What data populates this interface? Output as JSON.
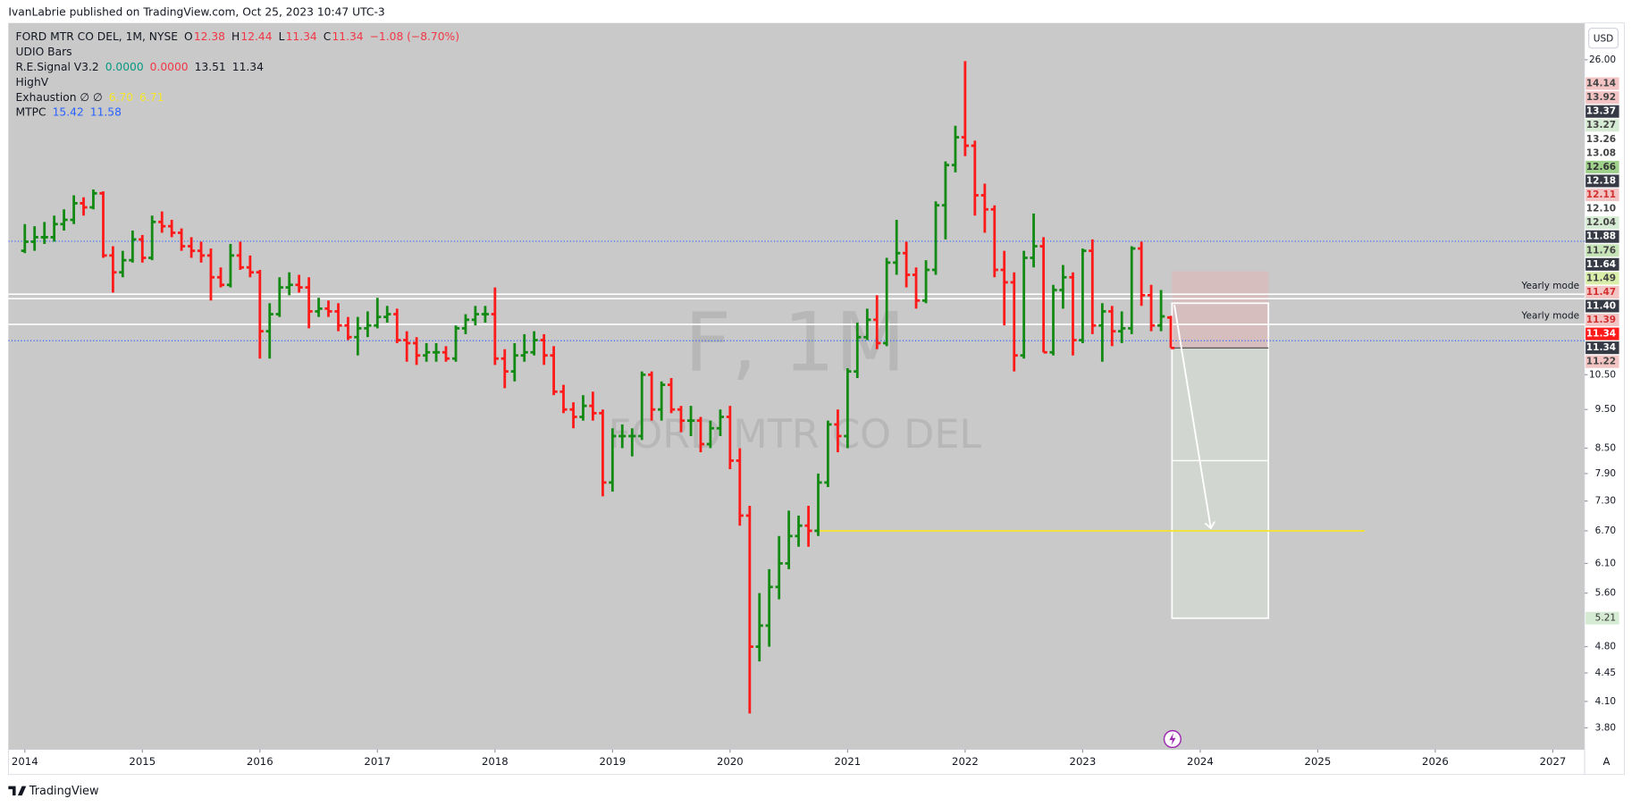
{
  "header": {
    "published": "IvanLabrie published on TradingView.com, Oct 25, 2023 10:47 UTC-3"
  },
  "currency": "USD",
  "legend": [
    [
      {
        "text": "FORD MTR CO DEL, 1M, NYSE",
        "color": "#131722"
      },
      {
        "text": "O",
        "color": "#131722"
      },
      {
        "text": "12.38",
        "color": "#f23645"
      },
      {
        "text": "H",
        "color": "#131722"
      },
      {
        "text": "12.44",
        "color": "#f23645"
      },
      {
        "text": "L",
        "color": "#131722"
      },
      {
        "text": "11.34",
        "color": "#f23645"
      },
      {
        "text": "C",
        "color": "#131722"
      },
      {
        "text": "11.34",
        "color": "#f23645"
      },
      {
        "text": "−1.08 (−8.70%)",
        "color": "#f23645"
      }
    ],
    [
      {
        "text": "UDIO Bars",
        "color": "#131722"
      }
    ],
    [
      {
        "text": "R.E.Signal V3.2",
        "color": "#131722"
      },
      {
        "text": "0.0000",
        "color": "#089981"
      },
      {
        "text": "0.0000",
        "color": "#f23645"
      },
      {
        "text": "13.51",
        "color": "#131722"
      },
      {
        "text": "11.34",
        "color": "#131722"
      }
    ],
    [
      {
        "text": "HighV",
        "color": "#131722"
      }
    ],
    [
      {
        "text": "Exhaustion  ∅  ∅",
        "color": "#131722"
      },
      {
        "text": "6.70",
        "color": "#f5e52a"
      },
      {
        "text": "6.71",
        "color": "#f5e52a"
      }
    ],
    [
      {
        "text": "MTPC",
        "color": "#131722"
      },
      {
        "text": "15.42",
        "color": "#2962ff"
      },
      {
        "text": "11.58",
        "color": "#2962ff"
      }
    ]
  ],
  "watermark": {
    "symbol": "F, 1M",
    "name": "FORD MTR CO DEL"
  },
  "chart_data": {
    "type": "ohlc",
    "log_scale": true,
    "up_color": "#138a13",
    "down_color": "#ff1a1a",
    "xlim": [
      2013.86,
      2027.27
    ],
    "xticks": [
      2014,
      2015,
      2016,
      2017,
      2018,
      2019,
      2020,
      2021,
      2022,
      2023,
      2024,
      2025,
      2026,
      2027
    ],
    "ylim": [
      3.57,
      28.9
    ],
    "yticks": [
      {
        "value": 26,
        "label": "26.00"
      },
      {
        "value": 10.5,
        "label": "10.50"
      },
      {
        "value": 9.5,
        "label": "9.50"
      },
      {
        "value": 8.5,
        "label": "8.50"
      },
      {
        "value": 7.9,
        "label": "7.90"
      },
      {
        "value": 7.3,
        "label": "7.30"
      },
      {
        "value": 6.7,
        "label": "6.70"
      },
      {
        "value": 6.1,
        "label": "6.10"
      },
      {
        "value": 5.6,
        "label": "5.60"
      },
      {
        "value": 4.8,
        "label": "4.80"
      },
      {
        "value": 4.45,
        "label": "4.45"
      },
      {
        "value": 4.1,
        "label": "4.10"
      },
      {
        "value": 3.8,
        "label": "3.80"
      }
    ],
    "x": [
      2014,
      2014.083,
      2014.167,
      2014.25,
      2014.333,
      2014.417,
      2014.5,
      2014.583,
      2014.667,
      2014.75,
      2014.833,
      2014.917,
      2015,
      2015.083,
      2015.167,
      2015.25,
      2015.333,
      2015.417,
      2015.5,
      2015.583,
      2015.667,
      2015.75,
      2015.833,
      2015.917,
      2016,
      2016.083,
      2016.167,
      2016.25,
      2016.333,
      2016.417,
      2016.5,
      2016.583,
      2016.667,
      2016.75,
      2016.833,
      2016.917,
      2017,
      2017.083,
      2017.167,
      2017.25,
      2017.333,
      2017.417,
      2017.5,
      2017.583,
      2017.667,
      2017.75,
      2017.833,
      2017.917,
      2018,
      2018.083,
      2018.167,
      2018.25,
      2018.333,
      2018.417,
      2018.5,
      2018.583,
      2018.667,
      2018.75,
      2018.833,
      2018.917,
      2019,
      2019.083,
      2019.167,
      2019.25,
      2019.333,
      2019.417,
      2019.5,
      2019.583,
      2019.667,
      2019.75,
      2019.833,
      2019.917,
      2020,
      2020.083,
      2020.167,
      2020.25,
      2020.333,
      2020.417,
      2020.5,
      2020.583,
      2020.667,
      2020.75,
      2020.833,
      2020.917,
      2021,
      2021.083,
      2021.167,
      2021.25,
      2021.333,
      2021.417,
      2021.5,
      2021.583,
      2021.667,
      2021.75,
      2021.833,
      2021.917,
      2022,
      2022.083,
      2022.167,
      2022.25,
      2022.333,
      2022.417,
      2022.5,
      2022.583,
      2022.667,
      2022.75,
      2022.833,
      2022.917,
      2023,
      2023.083,
      2023.167,
      2023.25,
      2023.333,
      2023.417,
      2023.5,
      2023.583,
      2023.667,
      2023.75
    ],
    "open": [
      15.0,
      15.4,
      15.6,
      15.6,
      16.2,
      16.4,
      17.2,
      17.0,
      17.7,
      14.8,
      14.1,
      14.6,
      15.5,
      14.7,
      16.3,
      16.1,
      15.8,
      15.2,
      15.0,
      14.8,
      13.9,
      13.6,
      14.8,
      14.3,
      14.1,
      11.9,
      12.5,
      13.5,
      13.6,
      13.5,
      12.6,
      12.7,
      12.6,
      12.1,
      11.7,
      12.0,
      12.1,
      12.4,
      12.5,
      11.6,
      11.5,
      11.1,
      11.2,
      11.2,
      11.0,
      12.0,
      12.3,
      12.5,
      12.5,
      11.0,
      10.6,
      11.1,
      11.2,
      11.6,
      11.1,
      10.0,
      9.5,
      9.3,
      9.6,
      9.4,
      7.7,
      8.8,
      8.8,
      8.8,
      10.5,
      9.5,
      10.2,
      9.5,
      9.2,
      9.2,
      8.6,
      9.0,
      9.3,
      8.2,
      7.0,
      4.8,
      5.1,
      5.7,
      6.1,
      6.6,
      6.8,
      6.7,
      7.7,
      9.1,
      8.8,
      10.6,
      11.7,
      12.3,
      11.5,
      14.5,
      14.9,
      14.0,
      13.0,
      14.2,
      17.1,
      19.2,
      20.8,
      20.3,
      17.6,
      16.9,
      14.2,
      13.7,
      11.1,
      14.7,
      15.2,
      11.2,
      13.4,
      13.9,
      11.6,
      15.0,
      12.1,
      12.6,
      11.9,
      12.0,
      15.1,
      13.2,
      12.1,
      12.38
    ],
    "high": [
      16.2,
      16.1,
      16.3,
      16.6,
      16.9,
      17.6,
      17.5,
      17.9,
      17.8,
      15.2,
      15.0,
      15.9,
      15.7,
      16.6,
      16.8,
      16.4,
      16.0,
      15.6,
      15.4,
      15.1,
      14.3,
      15.3,
      15.4,
      14.8,
      14.2,
      12.9,
      13.9,
      14.1,
      14.0,
      13.9,
      13.1,
      13.0,
      12.9,
      12.4,
      12.4,
      12.6,
      13.1,
      12.8,
      12.7,
      11.9,
      11.7,
      11.5,
      11.5,
      11.4,
      12.1,
      12.5,
      12.8,
      12.8,
      13.5,
      11.3,
      11.5,
      11.8,
      11.9,
      11.8,
      11.4,
      10.2,
      9.7,
      9.9,
      10.0,
      9.5,
      9.0,
      9.1,
      9.0,
      10.6,
      10.6,
      10.3,
      10.4,
      9.6,
      9.6,
      9.3,
      9.2,
      9.5,
      9.6,
      8.5,
      7.2,
      5.6,
      6.0,
      6.6,
      7.1,
      7.0,
      7.2,
      7.9,
      9.2,
      9.5,
      10.7,
      12.2,
      12.7,
      13.2,
      14.7,
      16.4,
      15.4,
      14.3,
      14.6,
      17.3,
      19.4,
      21.5,
      25.9,
      20.6,
      18.2,
      17.1,
      15.0,
      14.1,
      15.0,
      16.7,
      15.6,
      13.6,
      14.4,
      14.1,
      15.1,
      15.5,
      12.9,
      12.8,
      12.6,
      15.2,
      15.4,
      13.6,
      13.4,
      12.44
    ],
    "low": [
      14.9,
      15.0,
      15.3,
      15.4,
      15.9,
      16.2,
      16.6,
      16.9,
      14.7,
      13.3,
      13.9,
      14.5,
      14.5,
      14.6,
      15.8,
      15.6,
      15.0,
      14.7,
      14.5,
      13.0,
      13.5,
      13.5,
      14.2,
      13.9,
      11.0,
      11.0,
      12.4,
      13.2,
      13.3,
      12.0,
      12.4,
      12.4,
      11.9,
      11.6,
      11.1,
      11.7,
      12.0,
      12.2,
      11.5,
      10.9,
      10.8,
      10.9,
      10.9,
      10.9,
      10.9,
      11.8,
      12.1,
      12.2,
      10.8,
      10.1,
      10.3,
      10.9,
      11.1,
      10.8,
      9.9,
      9.4,
      9.0,
      9.2,
      9.2,
      7.4,
      7.5,
      8.5,
      8.3,
      8.7,
      9.2,
      9.2,
      9.4,
      8.9,
      8.8,
      8.4,
      8.5,
      8.8,
      8.0,
      6.8,
      3.96,
      4.6,
      4.8,
      5.5,
      6.0,
      6.4,
      6.4,
      6.6,
      7.6,
      8.4,
      8.5,
      10.4,
      11.6,
      11.3,
      11.4,
      14.0,
      13.5,
      12.7,
      12.9,
      14.0,
      15.5,
      18.8,
      19.7,
      16.6,
      15.8,
      13.9,
      12.1,
      10.6,
      11.0,
      14.3,
      11.2,
      11.1,
      12.7,
      11.1,
      11.5,
      11.8,
      10.9,
      11.4,
      11.5,
      11.8,
      12.8,
      11.9,
      11.9,
      11.34
    ],
    "close": [
      15.4,
      15.6,
      15.6,
      16.2,
      16.4,
      17.2,
      17.0,
      17.7,
      14.8,
      14.1,
      14.6,
      15.5,
      14.7,
      16.3,
      16.1,
      15.8,
      15.2,
      15.0,
      14.8,
      13.9,
      13.6,
      14.8,
      14.3,
      14.1,
      11.9,
      12.5,
      13.5,
      13.6,
      13.5,
      12.6,
      12.7,
      12.6,
      12.1,
      11.7,
      12.0,
      12.1,
      12.4,
      12.5,
      11.6,
      11.5,
      11.1,
      11.2,
      11.2,
      11.0,
      12.0,
      12.3,
      12.5,
      12.5,
      11.0,
      10.6,
      11.1,
      11.2,
      11.6,
      11.1,
      10.0,
      9.5,
      9.3,
      9.6,
      9.4,
      7.7,
      8.8,
      8.8,
      8.8,
      10.5,
      9.5,
      10.2,
      9.5,
      9.2,
      9.2,
      8.6,
      9.0,
      9.3,
      8.2,
      7.0,
      4.8,
      5.1,
      5.7,
      6.1,
      6.6,
      6.8,
      6.7,
      7.7,
      9.1,
      8.8,
      10.6,
      11.7,
      12.3,
      11.5,
      14.5,
      14.9,
      14.0,
      13.0,
      14.2,
      17.1,
      19.2,
      20.8,
      20.3,
      17.6,
      16.9,
      14.2,
      13.7,
      11.1,
      14.7,
      15.2,
      11.2,
      13.4,
      13.9,
      11.6,
      15.0,
      12.1,
      12.6,
      11.9,
      12.0,
      15.1,
      13.2,
      12.1,
      12.42,
      11.34
    ],
    "mtpc": {
      "values": [
        15.42,
        11.58
      ],
      "color": "#2962ff"
    },
    "yearly_mode": [
      {
        "value": 13.24,
        "label": "Yearly mode"
      },
      {
        "value": 13.07
      },
      {
        "value": 12.14,
        "label": "Yearly mode"
      }
    ],
    "yearly_mode_color": "#ffffff",
    "exhaustion_line": {
      "value": 6.7,
      "x": [
        2020.73,
        2025.4
      ],
      "color": "#f5e52a"
    },
    "position": {
      "x": [
        2023.76,
        2024.58
      ],
      "entry": 11.34,
      "stop": 14.14,
      "target": 5.21,
      "box_top": 12.9,
      "divider": 8.2
    },
    "arrow": {
      "x": [
        2023.78,
        2024.09
      ],
      "y": [
        12.84,
        6.75
      ]
    },
    "scale_badges": [
      {
        "label": "14.14",
        "bg": "#f2c4c4",
        "fg": "#444444"
      },
      {
        "label": "13.92",
        "bg": "#f2c4c4",
        "fg": "#444444"
      },
      {
        "label": "13.37",
        "bg": "#363a45",
        "fg": "#ffffff"
      },
      {
        "label": "13.27",
        "bg": "#d6ebd3",
        "fg": "#444444"
      },
      {
        "label": "13.26",
        "bg": "#ffffff",
        "fg": "#444444"
      },
      {
        "label": "13.08",
        "bg": "#ffffff",
        "fg": "#444444"
      },
      {
        "label": "12.66",
        "bg": "#9fd08c",
        "fg": "#333333"
      },
      {
        "label": "12.18",
        "bg": "#363a45",
        "fg": "#ffffff"
      },
      {
        "label": "12.11",
        "bg": "#f2c4c4",
        "fg": "#d32f2f"
      },
      {
        "label": "12.10",
        "bg": "#ffffff",
        "fg": "#444444"
      },
      {
        "label": "12.04",
        "bg": "#d6ebd3",
        "fg": "#444444"
      },
      {
        "label": "11.88",
        "bg": "#363a45",
        "fg": "#ffffff"
      },
      {
        "label": "11.76",
        "bg": "#c7e4b9",
        "fg": "#444444"
      },
      {
        "label": "11.64",
        "bg": "#363a45",
        "fg": "#ffffff"
      },
      {
        "label": "11.49",
        "bg": "#d9efa9",
        "fg": "#444444"
      },
      {
        "label": "11.47",
        "bg": "#f2c4c4",
        "fg": "#d32f2f"
      },
      {
        "label": "11.40",
        "bg": "#363a45",
        "fg": "#ffffff"
      },
      {
        "label": "11.39",
        "bg": "#f2c4c4",
        "fg": "#d32f2f"
      },
      {
        "label": "11.34",
        "bg": "#ff1a1a",
        "fg": "#ffffff"
      },
      {
        "label": "11.34",
        "bg": "#363a45",
        "fg": "#ffffff"
      },
      {
        "label": "11.22",
        "bg": "#f2c4c4",
        "fg": "#444444"
      }
    ],
    "target_badge": {
      "value": 5.21,
      "label": "5.21",
      "bg": "#d6ebd3",
      "fg": "#333333"
    }
  },
  "footer": {
    "brand": "TradingView",
    "scale_mode": "A"
  }
}
